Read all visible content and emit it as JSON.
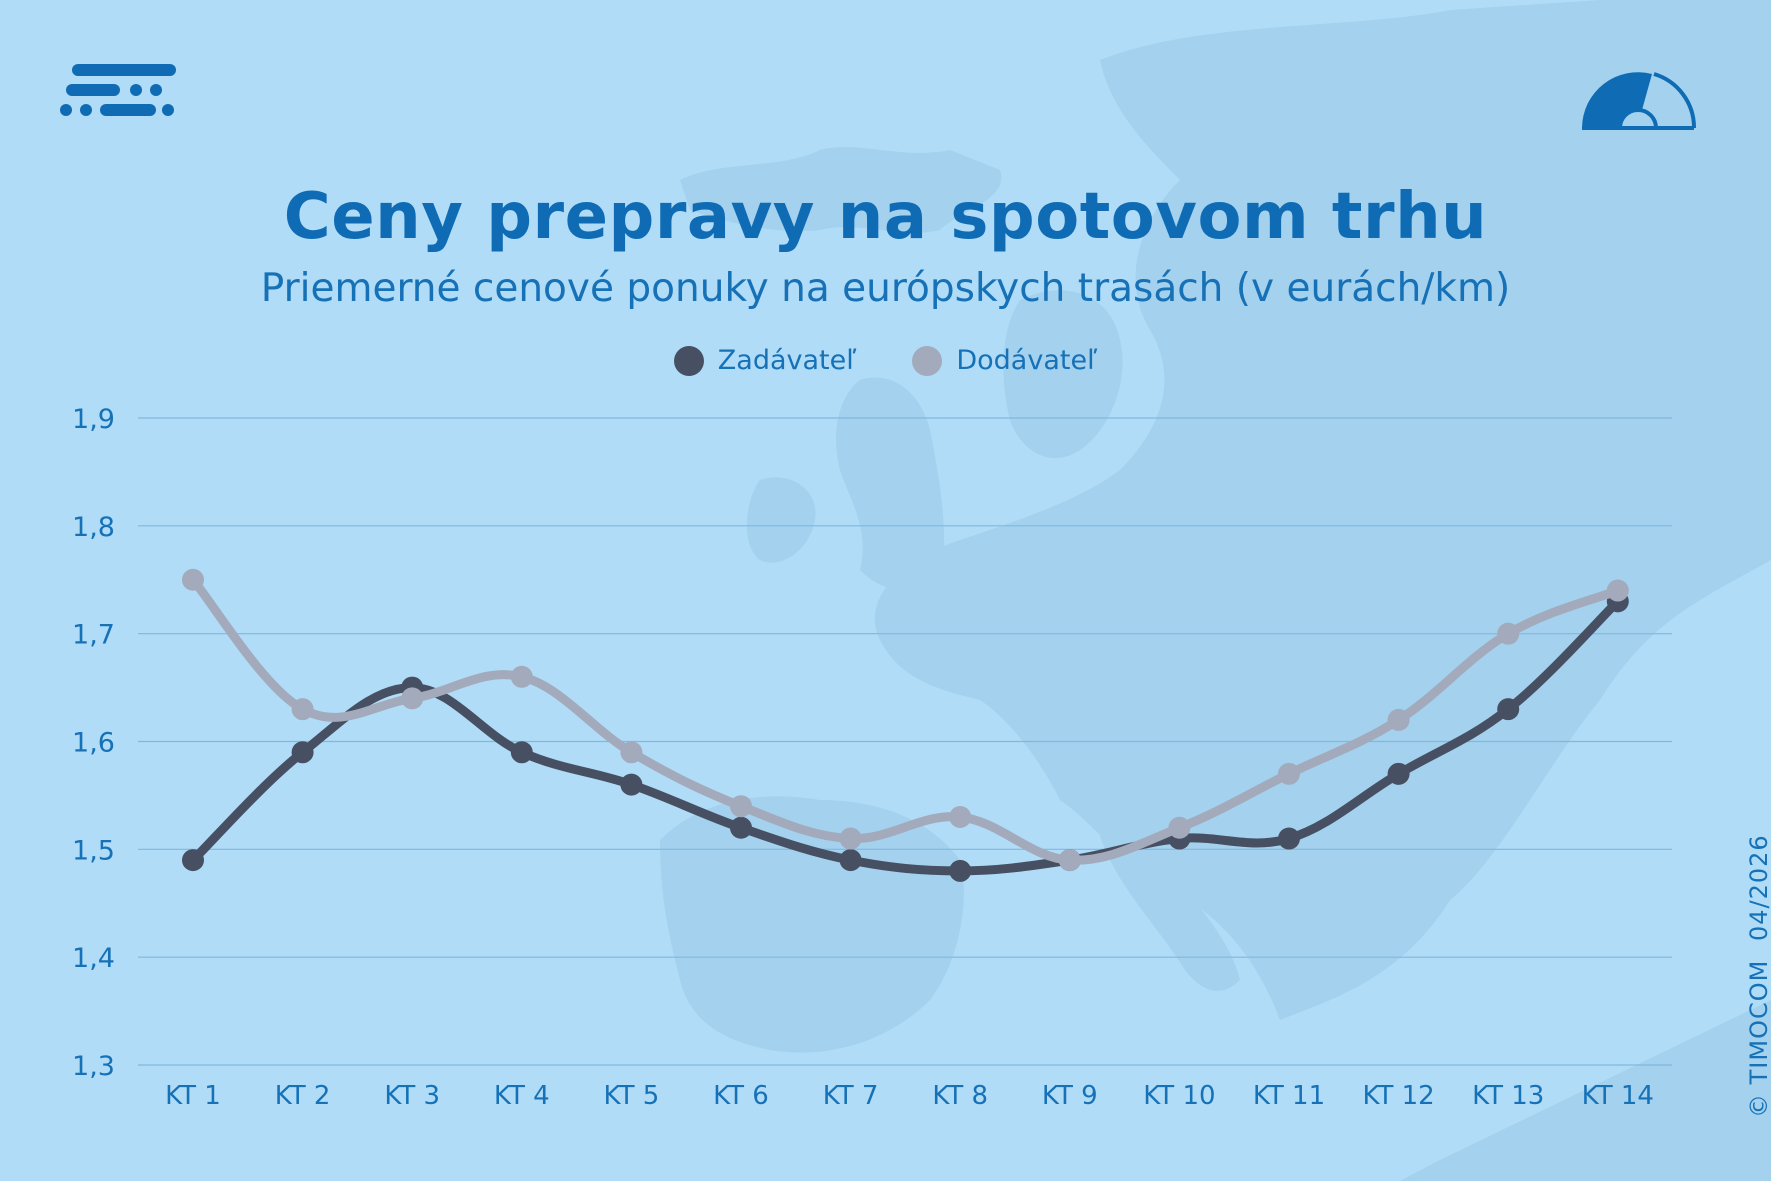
{
  "chart_data": {
    "type": "line",
    "title": "Ceny prepravy na spotovom trhu",
    "subtitle": "Priemerné cenové ponuky na európskych trasách (v eurách/km)",
    "categories": [
      "KT 1",
      "KT 2",
      "KT 3",
      "KT 4",
      "KT 5",
      "KT 6",
      "KT 7",
      "KT 8",
      "KT 9",
      "KT 10",
      "KT 11",
      "KT 12",
      "KT 13",
      "KT 14"
    ],
    "y_ticks": [
      "1,9",
      "1,8",
      "1,7",
      "1,6",
      "1,5",
      "1,4",
      "1,3"
    ],
    "ylim": [
      1.3,
      1.9
    ],
    "grid": true,
    "legend_position": "top-center",
    "series": [
      {
        "name": "Zadávateľ",
        "color": "#475063",
        "values": [
          1.49,
          1.59,
          1.65,
          1.59,
          1.56,
          1.52,
          1.49,
          1.48,
          1.49,
          1.51,
          1.51,
          1.57,
          1.63,
          1.73
        ]
      },
      {
        "name": "Dodávateľ",
        "color": "#a3aabb",
        "values": [
          1.75,
          1.63,
          1.64,
          1.66,
          1.59,
          1.54,
          1.51,
          1.53,
          1.49,
          1.52,
          1.57,
          1.62,
          1.7,
          1.74
        ]
      }
    ]
  },
  "colors": {
    "background": "#b0dcf7",
    "accent": "#0f6cb4",
    "grid": "#7fb8e0"
  },
  "icons": {
    "brand_logo": "timocom-lines-logo-icon",
    "gauge": "gauge-icon"
  },
  "credit": {
    "copyright": "© TIMOCOM",
    "date": "04/2026"
  }
}
